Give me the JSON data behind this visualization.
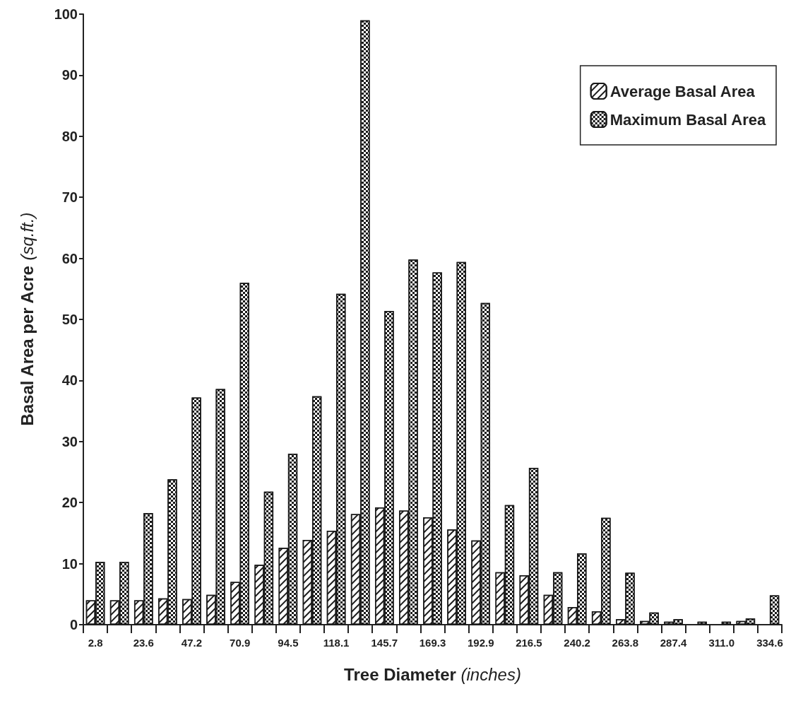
{
  "chart_data": {
    "type": "bar",
    "xlabel": "Tree Diameter (inches)",
    "ylabel": "Basal Area per Acre (sq.ft.)",
    "categories": [
      "2.8",
      null,
      "23.6",
      null,
      "47.2",
      null,
      "70.9",
      null,
      "94.5",
      null,
      "118.1",
      null,
      "145.7",
      null,
      "169.3",
      null,
      "192.9",
      null,
      "216.5",
      null,
      "240.2",
      null,
      "263.8",
      null,
      "287.4",
      null,
      "311.0",
      null,
      "334.6"
    ],
    "series": [
      {
        "name": "Average Basal Area",
        "color": "#1a1a1a",
        "values": [
          4,
          4,
          4,
          4.3,
          4.2,
          4.9,
          7,
          9.8,
          12.6,
          13.9,
          15.4,
          18.1,
          19.2,
          18.7,
          17.6,
          15.6,
          13.8,
          8.6,
          8.1,
          4.9,
          2.9,
          2.2,
          0.9,
          0.6,
          0.5,
          null,
          null,
          0.6,
          null
        ]
      },
      {
        "name": "Maximum Basal Area",
        "color": "#1a1a1a",
        "values": [
          10.3,
          10.3,
          18.3,
          23.8,
          37.2,
          38.6,
          56,
          21.8,
          28,
          37.4,
          54.2,
          99,
          51.4,
          59.8,
          57.7,
          59.4,
          52.7,
          19.6,
          25.7,
          8.6,
          11.7,
          17.5,
          8.5,
          2,
          0.9,
          0.5,
          0.5,
          1,
          4.8
        ]
      }
    ],
    "ylim": [
      0,
      100
    ],
    "yticks": [
      0,
      10,
      20,
      30,
      40,
      50,
      60,
      70,
      80,
      90,
      100
    ],
    "grid": false,
    "legend": "top right"
  }
}
